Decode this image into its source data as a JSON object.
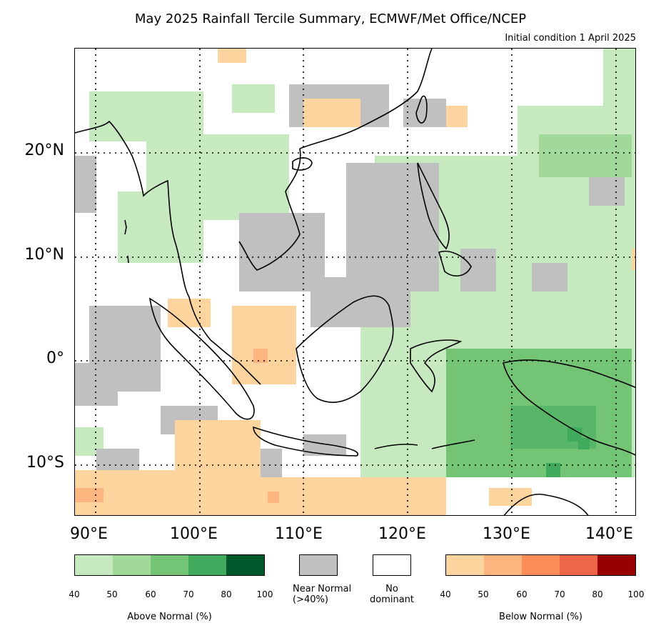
{
  "title": "May 2025 Rainfall Tercile Summary, ECMWF/Met Office/NCEP",
  "subtitle": "Initial condition 1 April 2025",
  "lat_labels": [
    "20°N",
    "10°N",
    "0°",
    "10°S"
  ],
  "lon_labels": [
    "90°E",
    "100°E",
    "110°E",
    "120°E",
    "130°E",
    "140°E"
  ],
  "legend": {
    "above": {
      "label": "Above Normal (%)",
      "ticks": [
        "40",
        "50",
        "60",
        "70",
        "80",
        "100"
      ],
      "colors": [
        "#c7e9c0",
        "#a1d99b",
        "#74c476",
        "#41ab5d",
        "#00582b"
      ]
    },
    "near": {
      "label_line1": "Near Normal",
      "label_line2": "(>40%)",
      "color": "#c0c0c0"
    },
    "none": {
      "label_line1": "No",
      "label_line2": "dominant",
      "color": "#ffffff"
    },
    "below": {
      "label": "Below Normal (%)",
      "ticks": [
        "40",
        "50",
        "60",
        "70",
        "80",
        "100"
      ],
      "colors": [
        "#fdd49e",
        "#fdb57f",
        "#fc8d59",
        "#ef6548",
        "#990000"
      ]
    }
  }
}
